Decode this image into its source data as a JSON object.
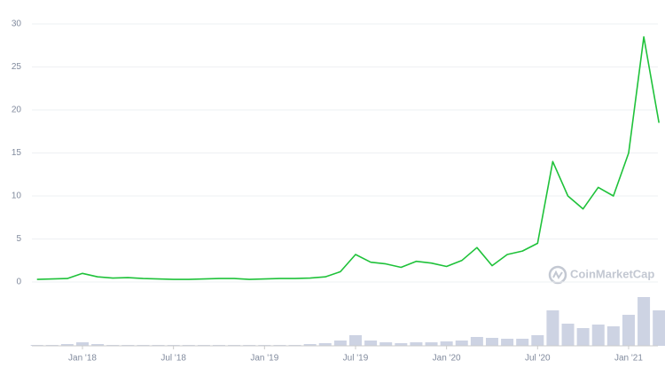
{
  "chart_data": {
    "type": "line",
    "x": [
      "2017-10",
      "2017-11",
      "2017-12",
      "2018-01",
      "2018-02",
      "2018-03",
      "2018-04",
      "2018-05",
      "2018-06",
      "2018-07",
      "2018-08",
      "2018-09",
      "2018-10",
      "2018-11",
      "2018-12",
      "2019-01",
      "2019-02",
      "2019-03",
      "2019-04",
      "2019-05",
      "2019-06",
      "2019-07",
      "2019-08",
      "2019-09",
      "2019-10",
      "2019-11",
      "2019-12",
      "2020-01",
      "2020-02",
      "2020-03",
      "2020-04",
      "2020-05",
      "2020-06",
      "2020-07",
      "2020-08",
      "2020-09",
      "2020-10",
      "2020-11",
      "2020-12",
      "2021-01",
      "2021-02",
      "2021-03"
    ],
    "series": [
      {
        "name": "Price",
        "color": "#1fc23a",
        "values": [
          0.3,
          0.35,
          0.4,
          1.0,
          0.6,
          0.45,
          0.5,
          0.4,
          0.35,
          0.3,
          0.3,
          0.35,
          0.4,
          0.4,
          0.3,
          0.35,
          0.4,
          0.4,
          0.45,
          0.6,
          1.2,
          3.2,
          2.3,
          2.1,
          1.7,
          2.4,
          2.2,
          1.8,
          2.5,
          4.0,
          1.9,
          3.2,
          3.6,
          4.5,
          14,
          10,
          8.5,
          11,
          10,
          15,
          28.5,
          18.5
        ]
      }
    ],
    "volume": {
      "color": "#cdd3e3",
      "values": [
        1,
        1,
        2,
        4,
        2,
        1,
        1,
        1,
        1,
        1,
        1,
        1,
        1,
        1,
        1,
        1,
        1,
        1,
        2,
        3,
        6,
        12,
        6,
        4,
        3,
        4,
        4,
        5,
        6,
        10,
        9,
        8,
        8,
        12,
        40,
        25,
        20,
        24,
        22,
        35,
        55,
        40
      ]
    },
    "ylim": [
      0,
      30
    ],
    "yticks": [
      0,
      5,
      10,
      15,
      20,
      25,
      30
    ],
    "grid": true,
    "xticks": [
      {
        "value": "2018-01",
        "label": "Jan '18"
      },
      {
        "value": "2018-07",
        "label": "Jul '18"
      },
      {
        "value": "2019-01",
        "label": "Jan '19"
      },
      {
        "value": "2019-07",
        "label": "Jul '19"
      },
      {
        "value": "2020-01",
        "label": "Jan '20"
      },
      {
        "value": "2020-07",
        "label": "Jul '20"
      },
      {
        "value": "2021-01",
        "label": "Jan '21"
      }
    ],
    "watermark": "CoinMarketCap"
  }
}
